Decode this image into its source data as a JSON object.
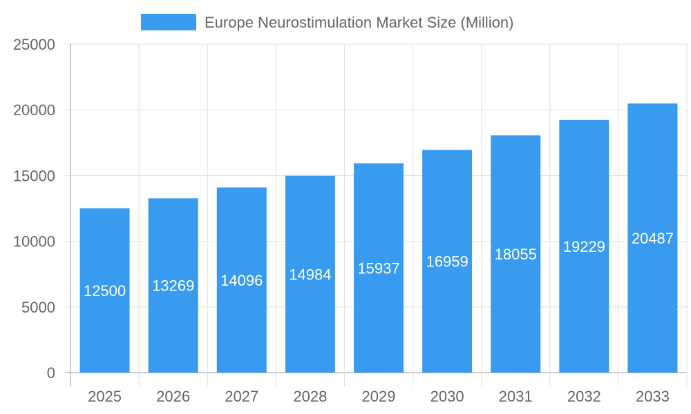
{
  "chart_data": {
    "type": "bar",
    "categories": [
      "2025",
      "2026",
      "2027",
      "2028",
      "2029",
      "2030",
      "2031",
      "2032",
      "2033"
    ],
    "series": [
      {
        "name": "Europe Neurostimulation Market Size (Million)",
        "values": [
          12500,
          13269,
          14096,
          14984,
          15937,
          16959,
          18055,
          19229,
          20487
        ]
      }
    ],
    "ylim": [
      0,
      25000
    ],
    "yticks": [
      "0",
      "5000",
      "10000",
      "15000",
      "20000",
      "25000"
    ],
    "grid": true,
    "legend": "top-center",
    "data_labels": true,
    "colors": {
      "bar": "#389BF0",
      "grid": "#e0e0e0",
      "axis": "#999999",
      "text": "#666666"
    }
  }
}
